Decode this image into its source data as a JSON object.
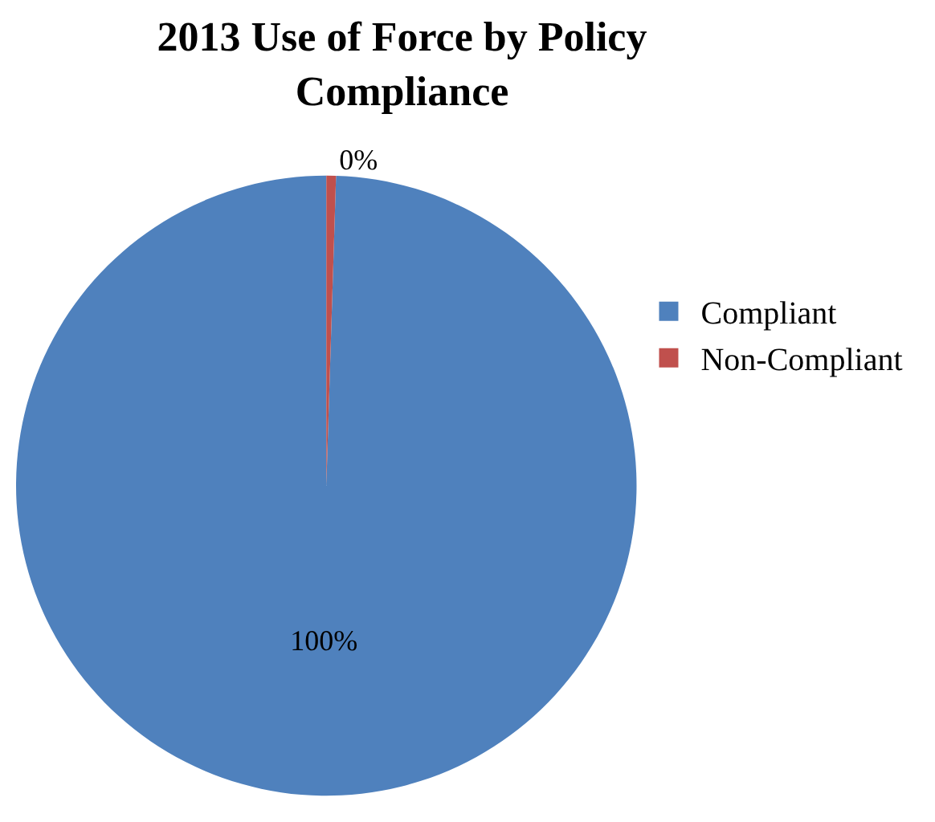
{
  "chart_data": {
    "type": "pie",
    "title": "2013 Use of Force by Policy Compliance",
    "categories": [
      "Compliant",
      "Non-Compliant"
    ],
    "values": [
      99.5,
      0.5
    ],
    "colors": [
      "#4f81bd",
      "#c0504d"
    ],
    "value_labels": [
      "100%",
      "0%"
    ],
    "legend": "right"
  }
}
